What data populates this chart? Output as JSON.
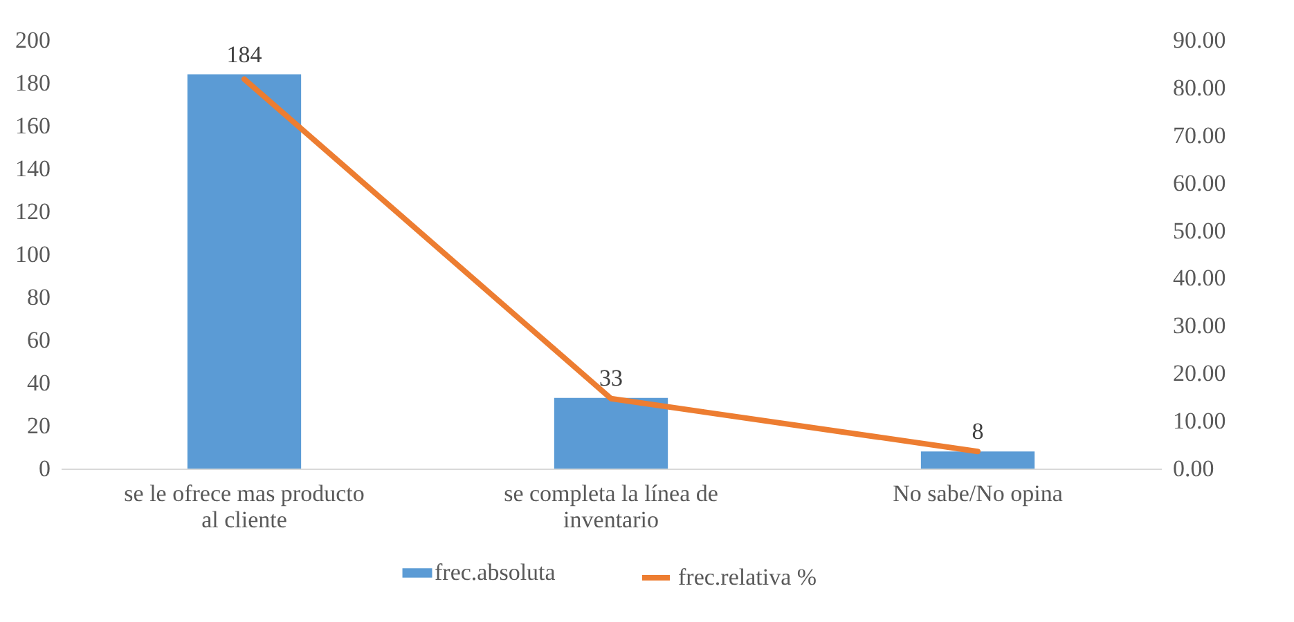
{
  "chart_data": {
    "type": "bar",
    "categories": [
      "se le ofrece mas producto al cliente",
      "se completa la línea de inventario",
      "No sabe/No opina"
    ],
    "series": [
      {
        "name": "frec.absoluta",
        "type": "bar",
        "color": "#5b9bd5",
        "values": [
          184,
          33,
          8
        ],
        "value_labels": [
          "184",
          "33",
          "8"
        ]
      },
      {
        "name": "frec.relativa %",
        "type": "line",
        "axis": "y2",
        "color": "#ed7d31",
        "values": [
          81.8,
          14.7,
          3.6
        ]
      }
    ],
    "ylim": [
      0,
      200
    ],
    "yticks": [
      0,
      20,
      40,
      60,
      80,
      100,
      120,
      140,
      160,
      180,
      200
    ],
    "y2lim": [
      0,
      90
    ],
    "y2ticks": [
      {
        "value": 0,
        "label": "0.00"
      },
      {
        "value": 10,
        "label": "10.00"
      },
      {
        "value": 20,
        "label": "20.00"
      },
      {
        "value": 30,
        "label": "30.00"
      },
      {
        "value": 40,
        "label": "40.00"
      },
      {
        "value": 50,
        "label": "50.00"
      },
      {
        "value": 60,
        "label": "60.00"
      },
      {
        "value": 70,
        "label": "70.00"
      },
      {
        "value": 80,
        "label": "80.00"
      },
      {
        "value": 90,
        "label": "90.00"
      }
    ],
    "legend": "bottom"
  }
}
